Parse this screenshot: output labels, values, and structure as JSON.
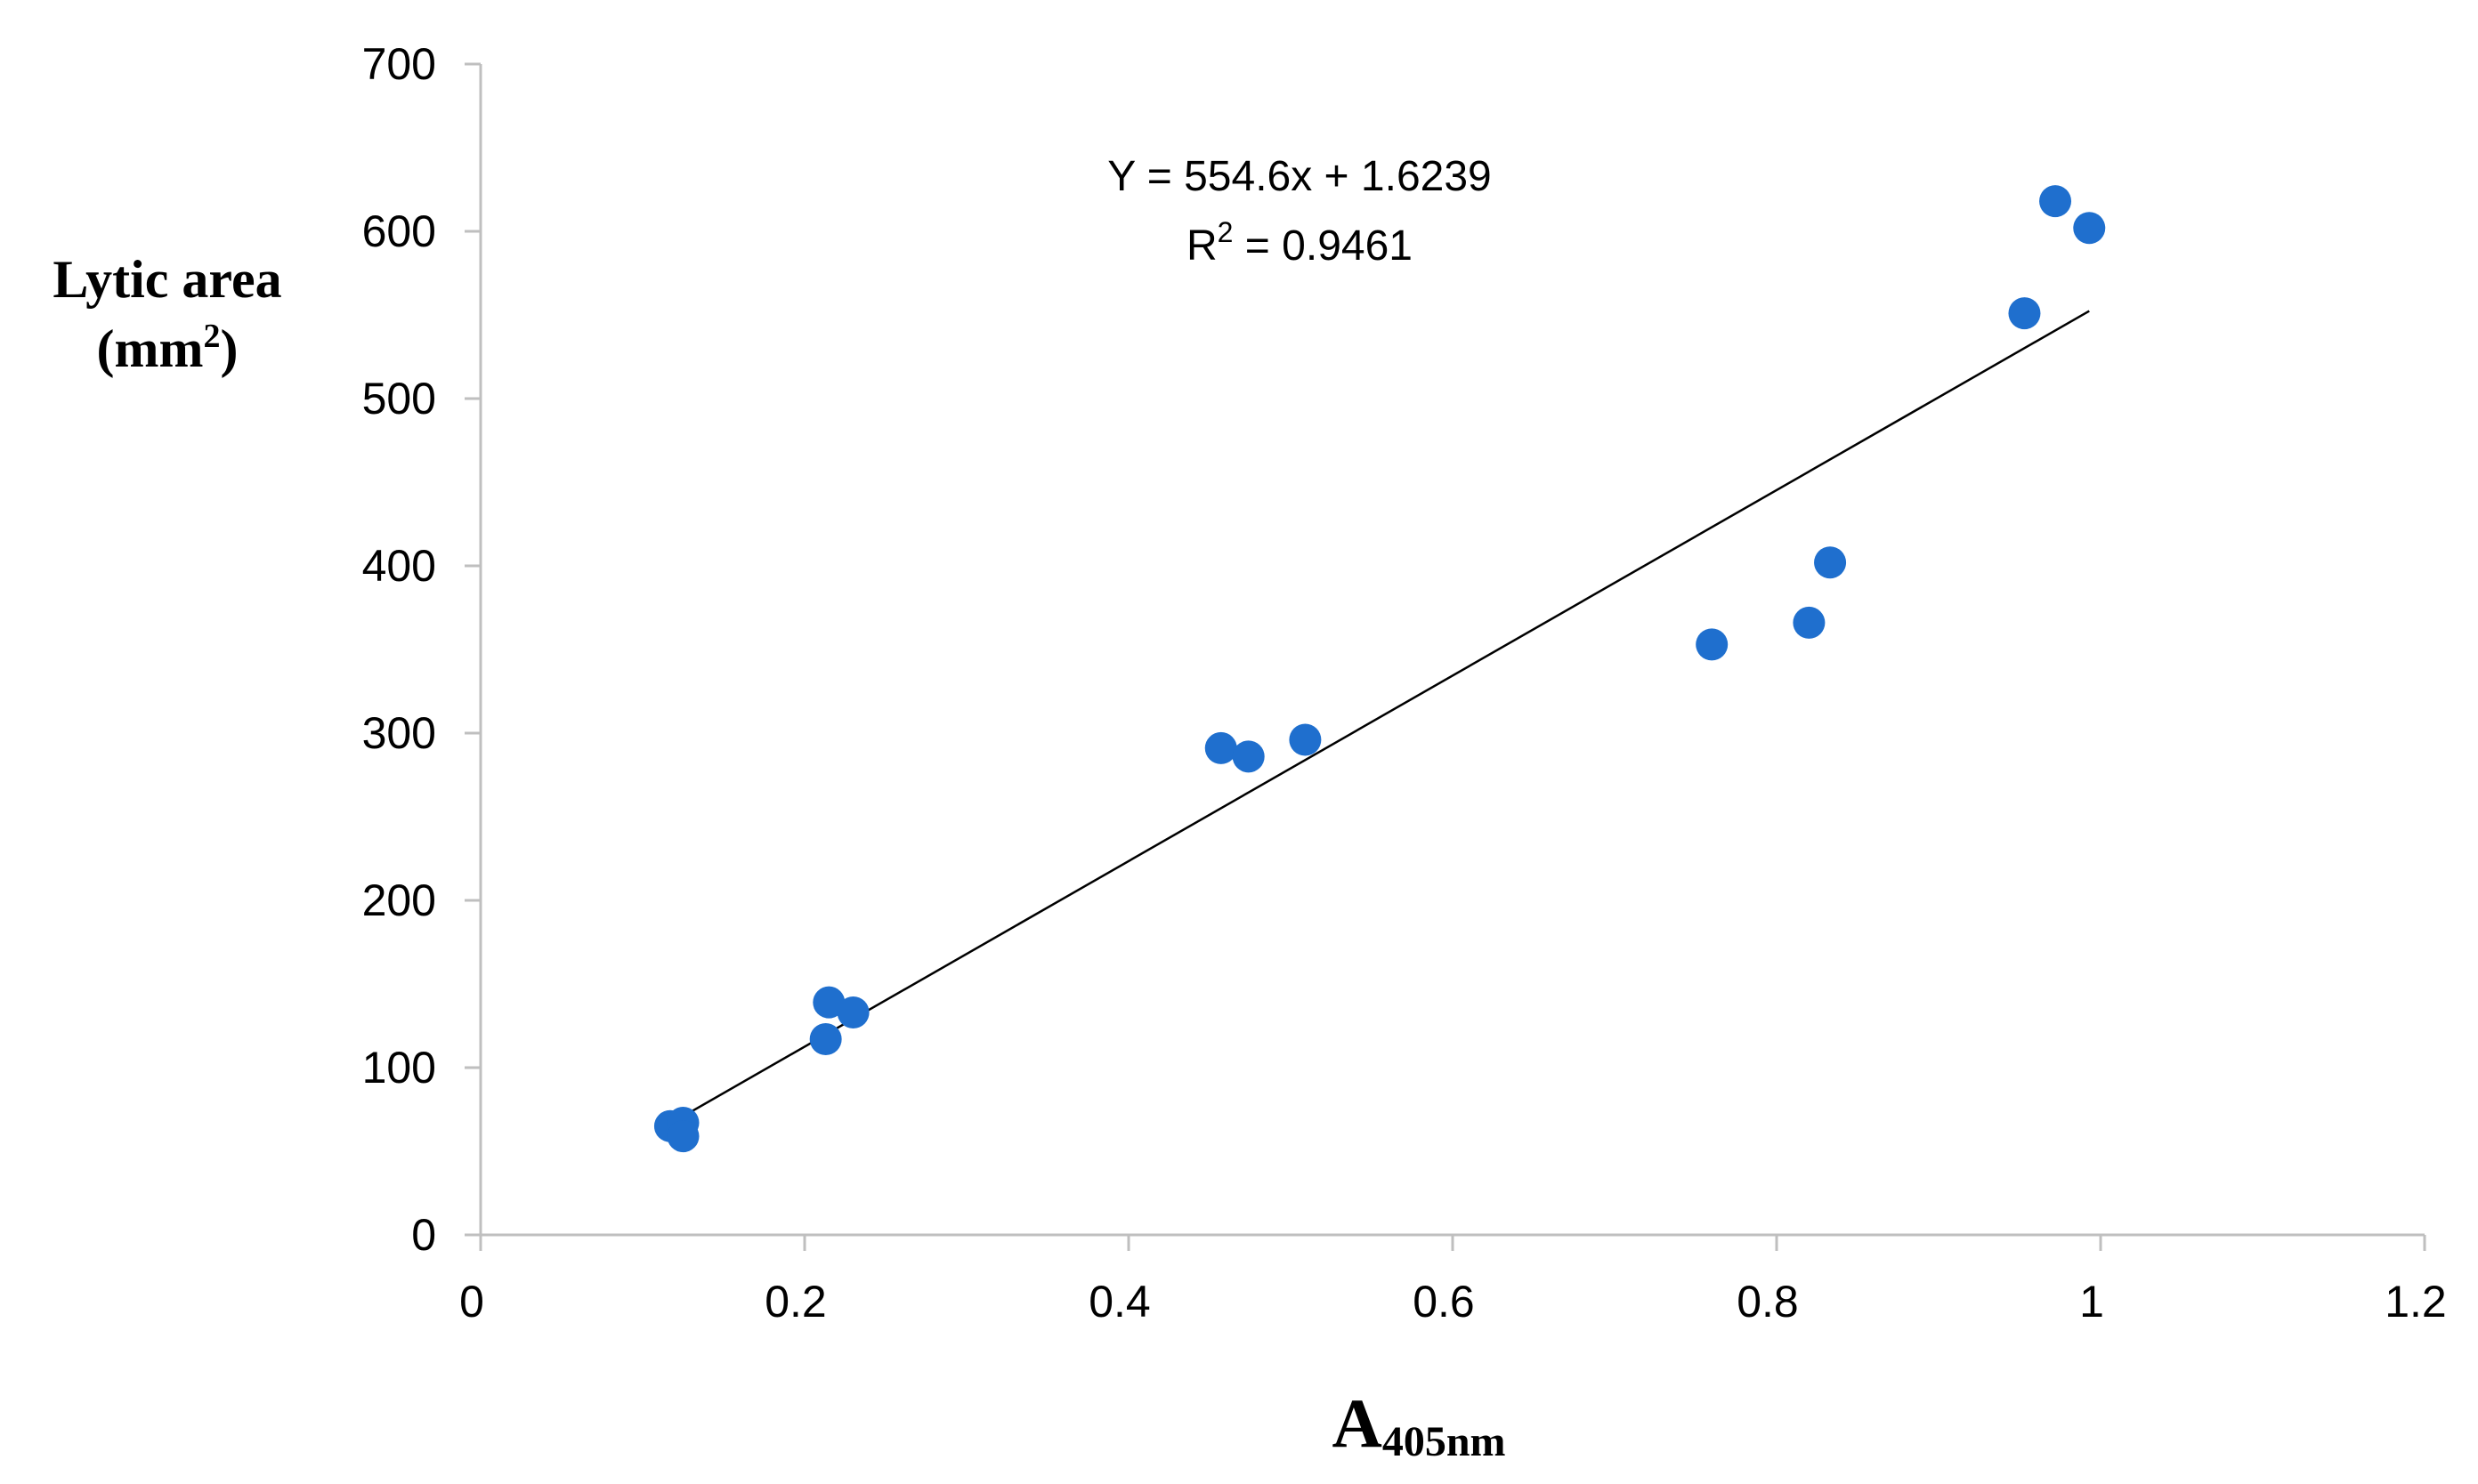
{
  "chart_data": {
    "type": "scatter",
    "title": "",
    "xlabel": "A",
    "xlabel_subscript": "405nm",
    "ylabel_line1": "Lytic area",
    "ylabel_line2_prefix": "(mm",
    "ylabel_line2_sup": "2",
    "ylabel_line2_suffix": ")",
    "xlim": [
      0,
      1.2
    ],
    "ylim": [
      0,
      700
    ],
    "x_ticks": [
      0,
      0.2,
      0.4,
      0.6,
      0.8,
      1,
      1.2
    ],
    "x_tick_labels": [
      "0",
      "0.2",
      "0.4",
      "0.6",
      "0.8",
      "1",
      "1.2"
    ],
    "y_ticks": [
      0,
      100,
      200,
      300,
      400,
      500,
      600,
      700
    ],
    "y_tick_labels": [
      "0",
      "100",
      "200",
      "300",
      "400",
      "500",
      "600",
      "700"
    ],
    "grid": false,
    "legend": "none",
    "series": [
      {
        "name": "Lytic area",
        "color": "#1f6fce",
        "points": [
          {
            "x": 0.117,
            "y": 65
          },
          {
            "x": 0.125,
            "y": 67
          },
          {
            "x": 0.125,
            "y": 59
          },
          {
            "x": 0.213,
            "y": 117
          },
          {
            "x": 0.215,
            "y": 139
          },
          {
            "x": 0.23,
            "y": 133
          },
          {
            "x": 0.457,
            "y": 291
          },
          {
            "x": 0.474,
            "y": 286
          },
          {
            "x": 0.509,
            "y": 296
          },
          {
            "x": 0.76,
            "y": 353
          },
          {
            "x": 0.82,
            "y": 366
          },
          {
            "x": 0.833,
            "y": 402
          },
          {
            "x": 0.953,
            "y": 551
          },
          {
            "x": 0.972,
            "y": 618
          },
          {
            "x": 0.993,
            "y": 602
          }
        ]
      }
    ],
    "trendline": {
      "type": "linear",
      "slope": 554.6,
      "intercept": 1.6239,
      "x_range": [
        0.117,
        0.993
      ],
      "color": "#000000",
      "equation_text": "Y = 554.6x + 1.6239",
      "r2_prefix": "R",
      "r2_sup": "2",
      "r2_value_text": " = 0.9461"
    }
  }
}
